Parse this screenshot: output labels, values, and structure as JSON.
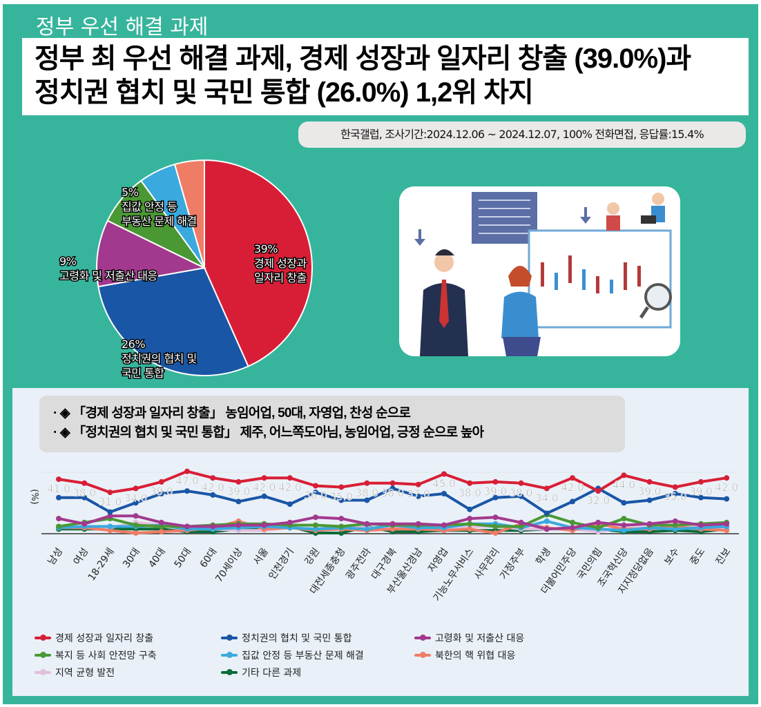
{
  "kicker": "정부 우선 해결 과제",
  "headline": {
    "line1": "정부 최 우선 해결 과제, 경제 성장과 일자리 창출 (39.0%)과",
    "line2": "정치권 협치 및 국민 통합 (26.0%) 1,2위 차지"
  },
  "source": "한국갤럽, 조사기간:2024.12.06 ~ 2024.12.07, 100% 전화면접, 응답률:15.4%",
  "notes": [
    "· ◈ 「경제 성장과 일자리 창출」 농임어업, 50대, 자영업, 찬성 순으로",
    "· ◈ 「정치권의 협치 및 국민 통합」 제주, 어느쪽도아님, 농임어업, 긍정 순으로 높아"
  ],
  "chart_data": [
    {
      "type": "pie",
      "slices": [
        {
          "name": "경제 성장과 일자리 창출",
          "value": 39,
          "color": "#d81e36",
          "label_pct": "39%",
          "label_lines": [
            "경제 성장과",
            "일자리 창출"
          ]
        },
        {
          "name": "정치권의 협치 및 국민 통합",
          "value": 26,
          "color": "#1a56a6",
          "label_pct": "26%",
          "label_lines": [
            "정치권의 협치 및",
            "국민 통합"
          ]
        },
        {
          "name": "고령화 및 저출산 대응",
          "value": 9,
          "color": "#a2398e",
          "label_pct": "9%",
          "label_lines": [
            "고령화 및 저출산 대응"
          ]
        },
        {
          "name": "복지 등 사회 안전망 구축",
          "value": 7,
          "color": "#4a9834",
          "label_pct": "5%",
          "label_lines": [
            "집값 안정 등",
            "부동산 문제 해결"
          ]
        },
        {
          "name": "집값 안정 등 부동산 문제 해결",
          "value": 5,
          "color": "#3aa9de"
        },
        {
          "name": "북한의 핵 위협 대응",
          "value": 4,
          "color": "#ef7d66"
        }
      ]
    },
    {
      "type": "line",
      "ylabel": "(%)",
      "ylim": [
        0,
        50
      ],
      "categories": [
        "남성",
        "여성",
        "18-29세",
        "30대",
        "40대",
        "50대",
        "60대",
        "70세이상",
        "서울",
        "인천경기",
        "강원",
        "대전세종충청",
        "광주전라",
        "대구경북",
        "부산울산경남",
        "자영업",
        "기능노무서비스",
        "사무관리",
        "가정주부",
        "학생",
        "더불어민주당",
        "국민의힘",
        "조국혁신당",
        "지지정당없음",
        "보수",
        "중도",
        "진보"
      ],
      "series": [
        {
          "name": "경제 성장과 일자리 창출",
          "color": "#d81e36",
          "labels": true,
          "values": [
            41,
            38,
            31,
            34,
            39,
            47,
            42,
            39,
            42,
            42,
            36,
            35,
            38,
            38,
            37,
            45,
            38,
            39,
            38,
            34,
            42,
            32,
            44,
            39,
            35,
            39,
            42
          ]
        },
        {
          "name": "정치권의 협치 및 국민 통합",
          "color": "#1a56a6",
          "values": [
            27,
            27,
            16,
            23,
            30,
            32,
            29,
            24,
            28,
            22,
            31,
            25,
            25,
            34,
            28,
            30,
            18,
            27,
            28,
            15,
            24,
            34,
            23,
            25,
            30,
            27,
            26
          ]
        },
        {
          "name": "고령화 및 저출산 대응",
          "color": "#a2398e",
          "values": [
            11,
            7,
            13,
            13,
            8,
            5,
            5,
            6,
            6,
            8,
            12,
            11,
            7,
            7,
            7,
            6,
            11,
            12,
            8,
            3,
            4,
            8,
            6,
            7,
            9,
            6,
            7
          ]
        },
        {
          "name": "복지 등 사회 안전망 구축",
          "color": "#4a9834",
          "values": [
            5,
            8,
            11,
            6,
            5,
            5,
            6,
            7,
            7,
            6,
            6,
            5,
            7,
            6,
            6,
            6,
            7,
            5,
            5,
            14,
            8,
            4,
            11,
            6,
            6,
            7,
            8
          ]
        },
        {
          "name": "집값 안정 등 부동산 문제 해결",
          "color": "#3aa9de",
          "values": [
            4,
            5,
            5,
            5,
            6,
            3,
            3,
            4,
            5,
            4,
            3,
            4,
            3,
            6,
            4,
            4,
            7,
            7,
            4,
            9,
            4,
            3,
            2,
            4,
            3,
            4,
            5
          ]
        },
        {
          "name": "북한의 핵 위협 대응",
          "color": "#ef7d66",
          "values": [
            4,
            4,
            2,
            0,
            1,
            2,
            4,
            9,
            3,
            4,
            2,
            3,
            2,
            3,
            3,
            2,
            3,
            0,
            7,
            4,
            2,
            7,
            3,
            3,
            5,
            3,
            2
          ]
        },
        {
          "name": "지역 균형 발전",
          "color": "#e2bedd",
          "values": [
            4,
            5,
            4,
            8,
            6,
            3,
            3,
            2,
            2,
            4,
            3,
            5,
            4,
            4,
            3,
            3,
            5,
            5,
            3,
            3,
            3,
            1,
            4,
            4,
            3,
            5,
            4
          ]
        },
        {
          "name": "기타 다른 과제",
          "color": "#0b6b3a",
          "values": [
            3,
            3,
            3,
            3,
            3,
            1,
            1,
            3,
            3,
            5,
            0,
            0,
            5,
            1,
            1,
            2,
            2,
            2,
            2,
            3,
            3,
            3,
            1,
            1,
            2,
            1,
            3
          ]
        }
      ]
    }
  ]
}
